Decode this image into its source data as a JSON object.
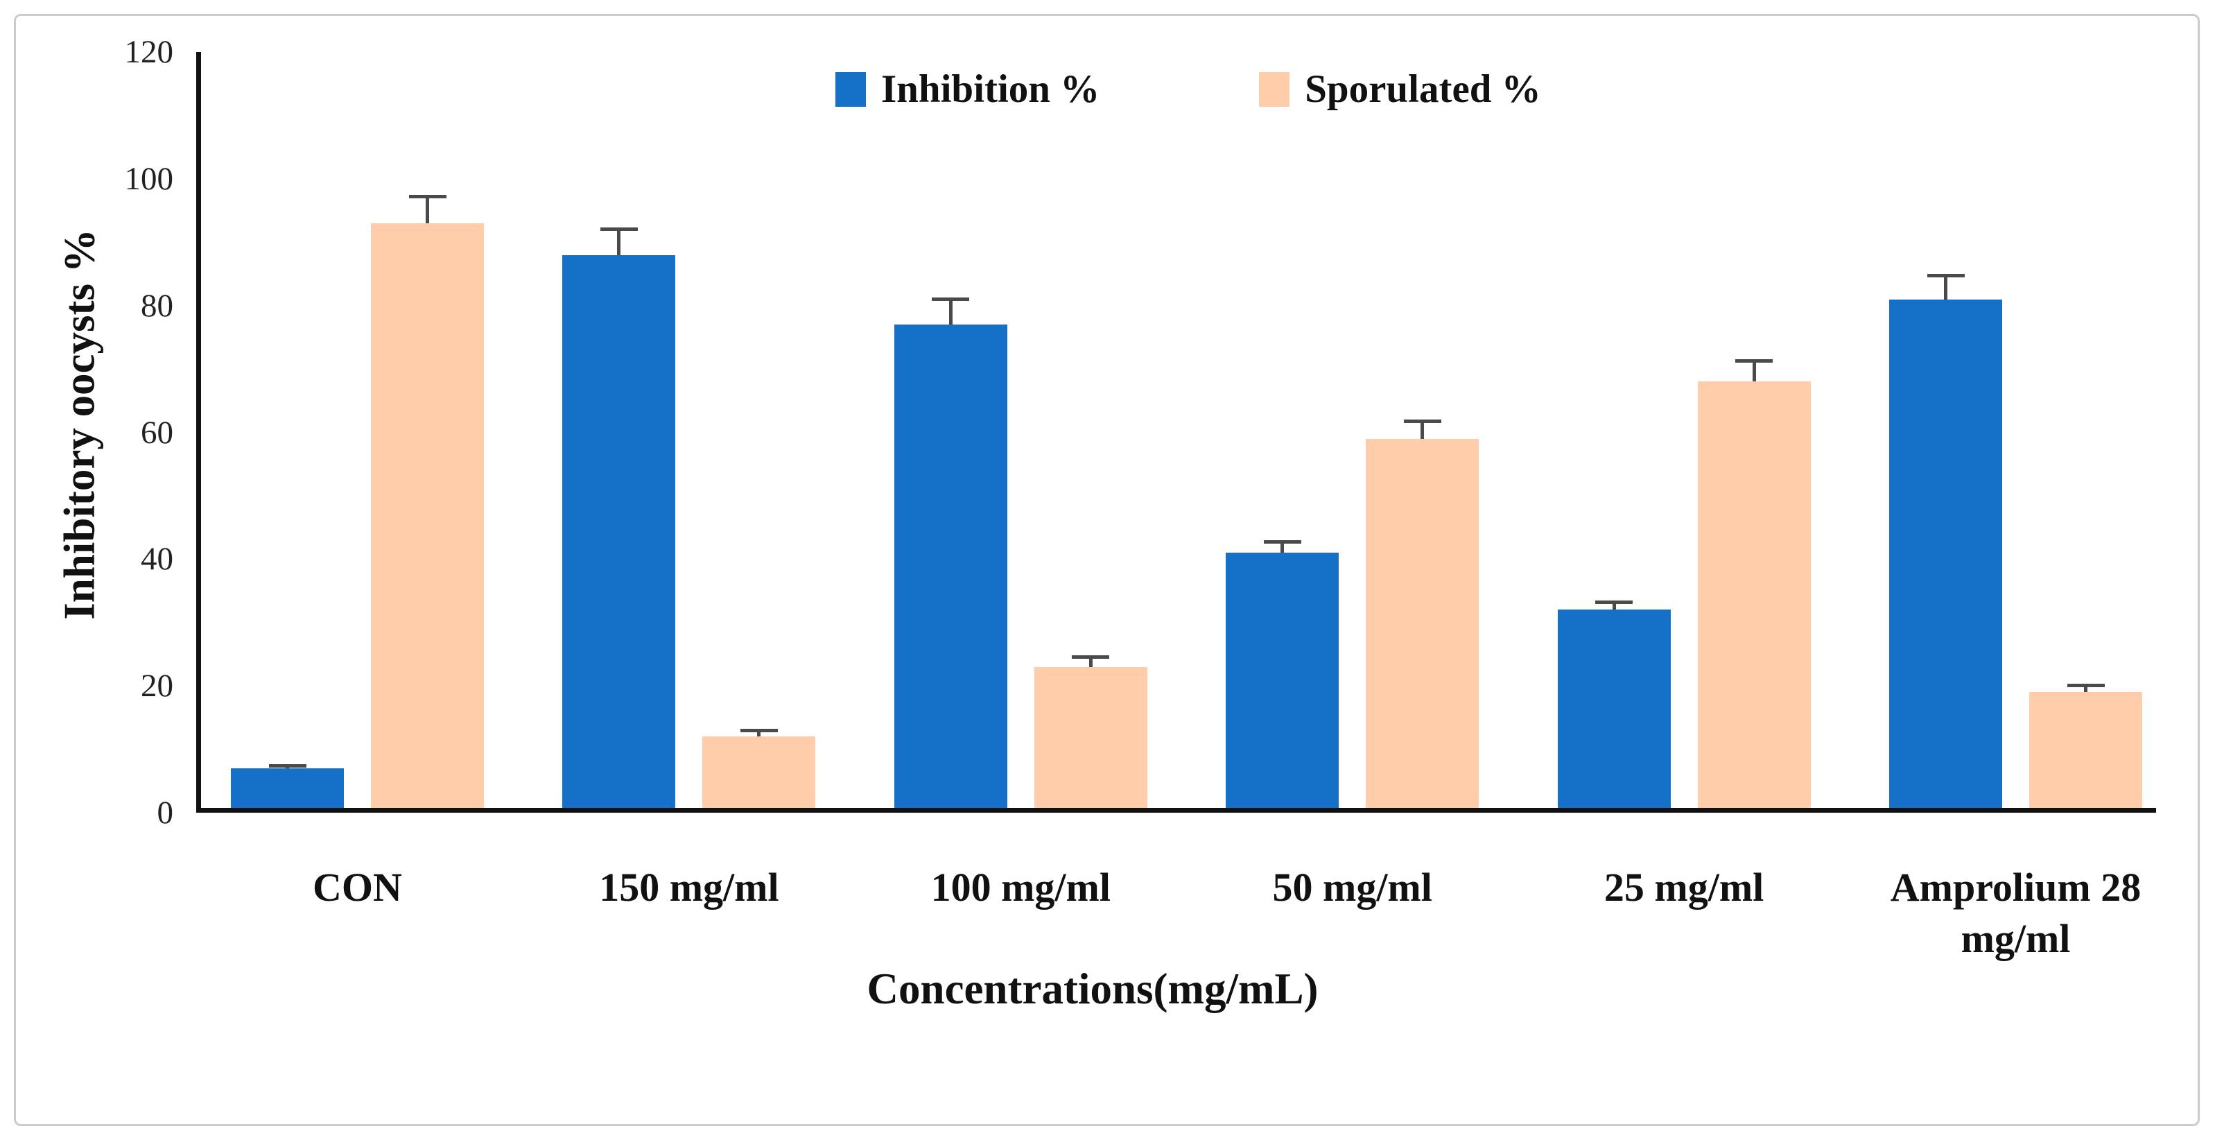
{
  "figure": {
    "background": "#ffffff",
    "frame_border_color": "#cbcbcb"
  },
  "chart_data": {
    "type": "bar",
    "title": "",
    "categories": [
      "CON",
      "150 mg/ml",
      "100 mg/ml",
      "50 mg/ml",
      "25 mg/ml",
      "Amprolium 28 mg/ml"
    ],
    "series": [
      {
        "name": "Inhibition %",
        "color": "#1571C8",
        "values": [
          7,
          88,
          77,
          41,
          32,
          81
        ],
        "errors_plus": [
          0.7,
          4.3,
          4.3,
          2.0,
          1.5,
          4.0
        ]
      },
      {
        "name": "Sporulated %",
        "color": "#FFCDA9",
        "values": [
          93,
          12,
          23,
          59,
          68,
          19
        ],
        "errors_plus": [
          4.5,
          1.2,
          1.8,
          3.0,
          3.5,
          1.3
        ]
      }
    ],
    "xlabel": "Concentrations(mg/mL)",
    "ylabel": "Inhibitory oocysts %",
    "ylim": [
      0,
      120
    ],
    "yticks": [
      0,
      20,
      40,
      60,
      80,
      100,
      120
    ],
    "legend_position": "top-center",
    "grid": false,
    "error_bar_color": "#4a4a4a",
    "axis_color": "#111111"
  }
}
